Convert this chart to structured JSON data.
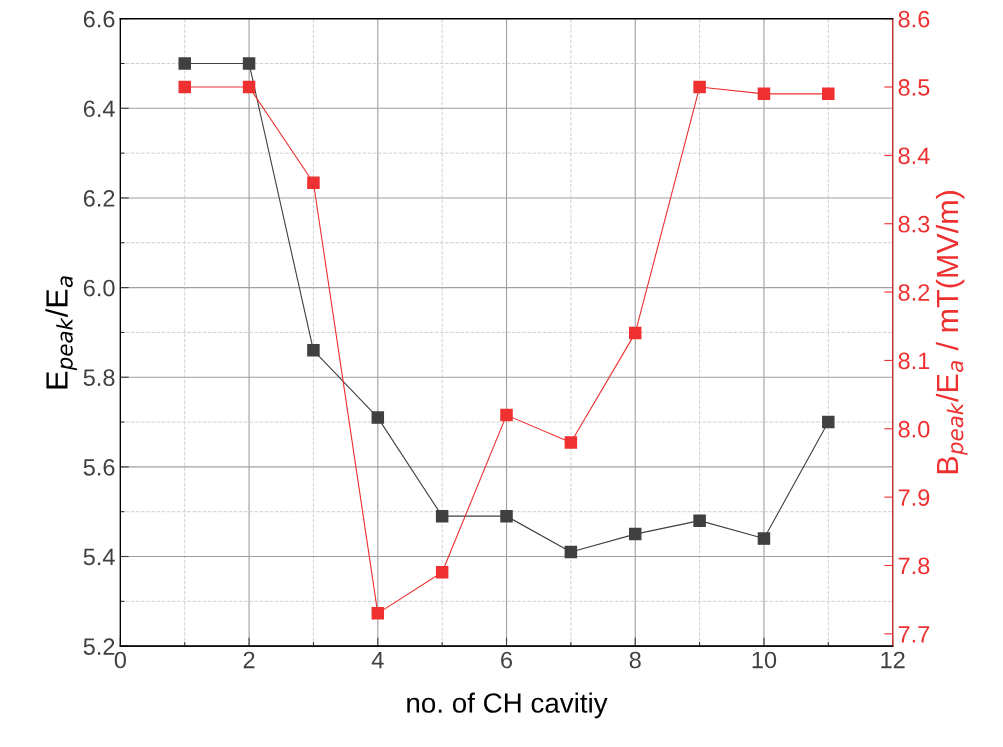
{
  "chart_data": {
    "type": "line",
    "xlabel": "no. of CH cavitiy",
    "ylabel": "E$_{peak}$/E$_{a}$",
    "y2label": "B$_{peak}$/E$_{a}$ / mT(MV/m)",
    "x": [
      1,
      2,
      3,
      4,
      5,
      6,
      7,
      8,
      9,
      10,
      11
    ],
    "series": [
      {
        "color": "#404040",
        "values": [
          6.5,
          6.5,
          5.86,
          5.71,
          5.49,
          5.49,
          5.41,
          5.45,
          5.48,
          5.44,
          5.7
        ]
      },
      {
        "color": "#ee3030",
        "axis": "y2",
        "values": [
          8.5,
          8.5,
          8.36,
          7.73,
          7.79,
          8.02,
          7.98,
          8.14,
          8.5,
          8.49,
          8.49
        ]
      }
    ],
    "xlim": [
      0,
      12
    ],
    "xticks": [
      0,
      2,
      4,
      6,
      8,
      10,
      12
    ],
    "ylim": [
      5.2,
      6.6
    ],
    "yticks": [
      5.2,
      5.4,
      5.6,
      5.8,
      {
        "value": 6,
        "label": "6.0"
      },
      6.2,
      6.4,
      6.6
    ],
    "y2lim": [
      7.682,
      8.6
    ],
    "y2ticks": [
      7.7,
      7.8,
      7.9,
      {
        "value": 8,
        "label": "8.0"
      },
      8.1,
      8.2,
      8.3,
      8.4,
      8.5,
      8.6
    ],
    "grid": true,
    "marker": "square",
    "line_style": "solid",
    "legend": false
  }
}
